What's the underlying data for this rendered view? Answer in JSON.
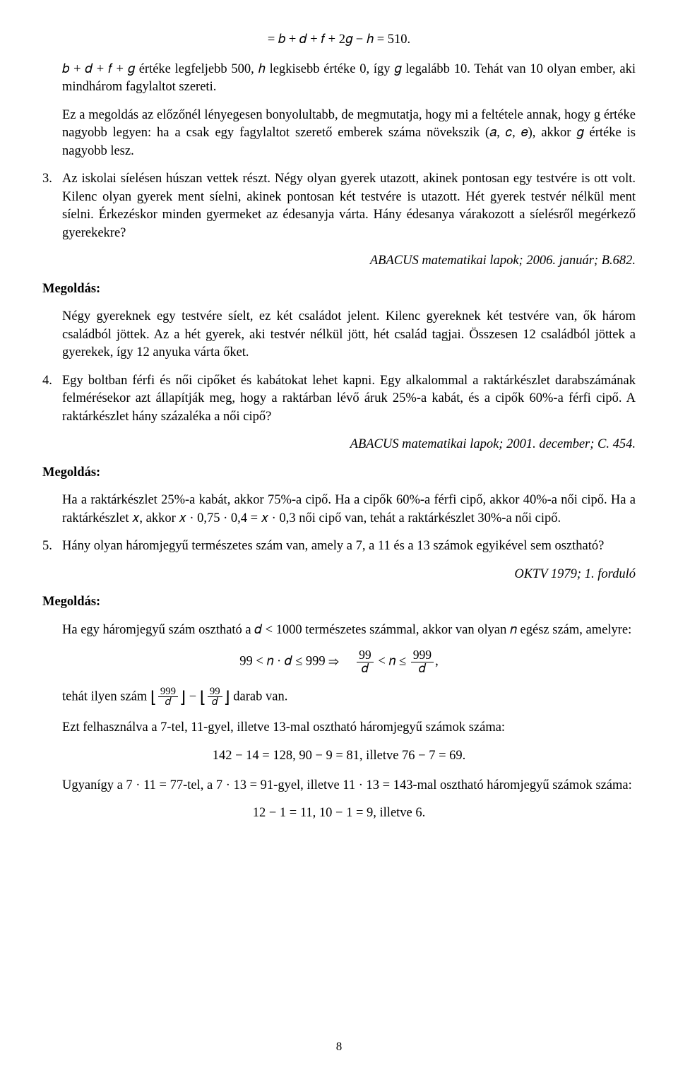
{
  "eq_top": "= 𝑏 + 𝑑 + 𝑓 + 2𝑔 − ℎ = 510.",
  "p1": "𝑏 + 𝑑 + 𝑓 + 𝑔 értéke legfeljebb 500, ℎ legkisebb értéke 0, így 𝑔 legalább 10. Tehát van 10 olyan ember, aki mindhárom fagylaltot szereti.",
  "p2": "Ez a megoldás az előzőnél lényegesen bonyolultabb, de megmutatja, hogy mi a feltétele annak, hogy g értéke nagyobb legyen: ha a csak egy fagylaltot szerető emberek száma növekszik (𝑎, 𝑐, 𝑒), akkor 𝑔 értéke is nagyobb lesz.",
  "q3_num": "3.",
  "q3_text": "Az iskolai síelésen húszan vettek részt. Négy olyan gyerek utazott, akinek pontosan egy testvére is ott volt. Kilenc olyan gyerek ment síelni, akinek pontosan két testvére is utazott. Hét gyerek testvér nélkül ment síelni. Érkezéskor minden gyermeket az édesanyja várta. Hány édesanya várakozott a síelésről megérkező gyerekekre?",
  "src3": "ABACUS matematikai lapok; 2006. január; B.682.",
  "megoldas": "Megoldás:",
  "sol3": "Négy gyereknek egy testvére síelt, ez két családot jelent. Kilenc gyereknek két testvére van, ők három családból jöttek. Az a hét gyerek, aki testvér nélkül jött, hét család tagjai. Összesen 12 családból jöttek a gyerekek, így 12 anyuka várta őket.",
  "q4_num": "4.",
  "q4_text": "Egy boltban férfi és női cipőket és kabátokat lehet kapni. Egy alkalommal a raktárkészlet darabszámának felmérésekor azt állapítják meg, hogy a raktárban lévő áruk 25%-a kabát, és a cipők 60%-a férfi cipő. A raktárkészlet hány százaléka a női cipő?",
  "src4": "ABACUS matematikai lapok; 2001. december; C. 454.",
  "sol4": "Ha a raktárkészlet 25%-a kabát, akkor 75%-a cipő. Ha a cipők 60%-a férfi cipő, akkor 40%-a női cipő. Ha a raktárkészlet 𝑥, akkor 𝑥 · 0,75 · 0,4 = 𝑥 · 0,3 női cipő van, tehát a raktárkészlet 30%-a női cipő.",
  "q5_num": "5.",
  "q5_text": "Hány olyan háromjegyű természetes szám van, amely a 7, a 11 és a 13 számok egyikével sem osztható?",
  "src5": "OKTV 1979; 1. forduló",
  "sol5a": "Ha egy háromjegyű szám osztható a 𝑑 < 1000 természetes számmal, akkor van olyan 𝑛 egész szám, amelyre:",
  "eq5_left": "99 < 𝑛 · 𝑑 ≤ 999   ⇒",
  "frac1_top": "99",
  "frac1_bot": "𝑑",
  "eq5_mid": " < 𝑛 ≤ ",
  "frac2_top": "999",
  "frac2_bot": "𝑑",
  "eq5_tail": ",",
  "sol5b_pre": "tehát ilyen szám ",
  "fl1_top": "999",
  "fl1_bot": "𝑑",
  "fl_minus": " − ",
  "fl2_top": "99",
  "fl2_bot": "𝑑",
  "sol5b_post": " darab van.",
  "sol5c": "Ezt felhasználva a 7-tel, 11-gyel, illetve 13-mal osztható háromjegyű számok száma:",
  "eq5c": "142 − 14 = 128, 90 − 9 = 81, illetve 76 − 7 = 69.",
  "sol5d": "Ugyanígy a 7 · 11 = 77-tel, a 7 · 13 = 91-gyel, illetve 11 · 13 = 143-mal osztható háromjegyű számok száma:",
  "eq5d": "12 − 1 = 11, 10 − 1 = 9, illetve 6.",
  "page_number": "8"
}
